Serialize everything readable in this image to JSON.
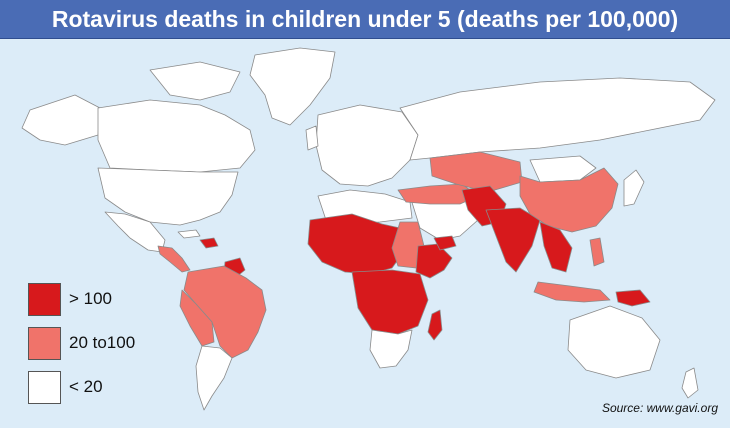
{
  "title": "Rotavirus deaths in children under 5 (deaths per 100,000)",
  "legend": [
    {
      "label": "> 100",
      "color": "#d7191c"
    },
    {
      "label": "20 to100",
      "color": "#f0736a"
    },
    {
      "label": "< 20",
      "color": "#ffffff"
    }
  ],
  "source": "Source: www.gavi.org",
  "colors": {
    "ocean": "#dcecf8",
    "title_bar": "#4a6cb5",
    "border": "#8a8a8a"
  }
}
